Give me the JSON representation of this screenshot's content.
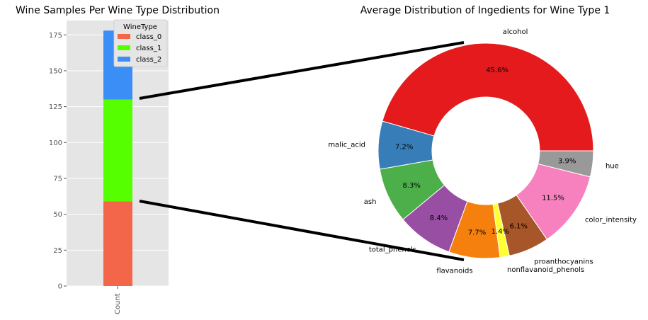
{
  "chart_data": [
    {
      "type": "bar",
      "stacked": true,
      "title": "Wine Samples Per Wine Type Distribution",
      "categories": [
        "Count"
      ],
      "series": [
        {
          "name": "class_0",
          "values": [
            59
          ],
          "color": "#f4664a"
        },
        {
          "name": "class_1",
          "values": [
            71
          ],
          "color": "#55ff00"
        },
        {
          "name": "class_2",
          "values": [
            48
          ],
          "color": "#3a8ef6"
        }
      ],
      "ylim": [
        0,
        185
      ],
      "yticks": [
        0,
        25,
        50,
        75,
        100,
        125,
        150,
        175
      ],
      "legend": {
        "title": "WineType",
        "placement": "top-right"
      },
      "grid": true,
      "background": "#e5e5e5"
    },
    {
      "type": "pie",
      "donut": true,
      "title": "Average Distribution of Ingedients for Wine Type 1",
      "labels": [
        "alcohol",
        "malic_acid",
        "ash",
        "total_phenols",
        "flavanoids",
        "nonflavanoid_phenols",
        "proanthocyanins",
        "color_intensity",
        "hue"
      ],
      "values": [
        45.6,
        7.2,
        8.3,
        8.4,
        7.7,
        1.4,
        6.1,
        11.5,
        3.9
      ],
      "value_labels": [
        "45.6%",
        "7.2%",
        "8.3%",
        "8.4%",
        "7.7%",
        "1.4%",
        "6.1%",
        "11.5%",
        "3.9%"
      ],
      "colors": [
        "#e41a1c",
        "#377eb8",
        "#4daf4a",
        "#984ea3",
        "#f5800d",
        "#ffff33",
        "#a65628",
        "#f781bf",
        "#999999"
      ],
      "start_angle_deg": 0,
      "direction": "counterclockwise"
    }
  ]
}
